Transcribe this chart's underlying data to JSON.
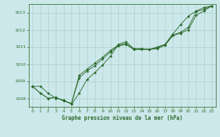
{
  "title": "Graphe pression niveau de la mer (hPa)",
  "bg_color": "#cce8ea",
  "grid_color": "#aacdd0",
  "line_color": "#2d6b2d",
  "xlim": [
    -0.5,
    23.5
  ],
  "ylim": [
    1007.5,
    1013.5
  ],
  "yticks": [
    1008,
    1009,
    1010,
    1011,
    1012,
    1013
  ],
  "xticks": [
    0,
    1,
    2,
    3,
    4,
    5,
    6,
    7,
    8,
    9,
    10,
    11,
    12,
    13,
    14,
    15,
    16,
    17,
    18,
    19,
    20,
    21,
    22,
    23
  ],
  "series": [
    [
      1008.7,
      1008.7,
      1008.3,
      1008.0,
      1007.9,
      1007.65,
      1008.3,
      1009.1,
      1009.5,
      1009.95,
      1010.45,
      1011.15,
      1011.3,
      1010.9,
      1010.9,
      1010.85,
      1011.0,
      1011.15,
      1011.75,
      1012.3,
      1012.8,
      1013.1,
      1013.3,
      1013.4
    ],
    [
      1008.7,
      1008.3,
      1008.0,
      1008.05,
      1007.85,
      1007.7,
      1009.35,
      1009.7,
      1010.05,
      1010.4,
      1010.8,
      1011.1,
      1011.2,
      1010.85,
      1010.9,
      1010.85,
      1010.95,
      1011.1,
      1011.7,
      1011.85,
      1012.15,
      1013.05,
      1013.2,
      1013.4
    ],
    [
      1008.7,
      1008.3,
      1008.0,
      1008.05,
      1007.85,
      1007.7,
      1009.2,
      1009.6,
      1009.9,
      1010.3,
      1010.7,
      1011.05,
      1011.15,
      1010.85,
      1010.85,
      1010.85,
      1010.9,
      1011.1,
      1011.65,
      1011.8,
      1012.0,
      1012.85,
      1013.1,
      1013.4
    ]
  ]
}
